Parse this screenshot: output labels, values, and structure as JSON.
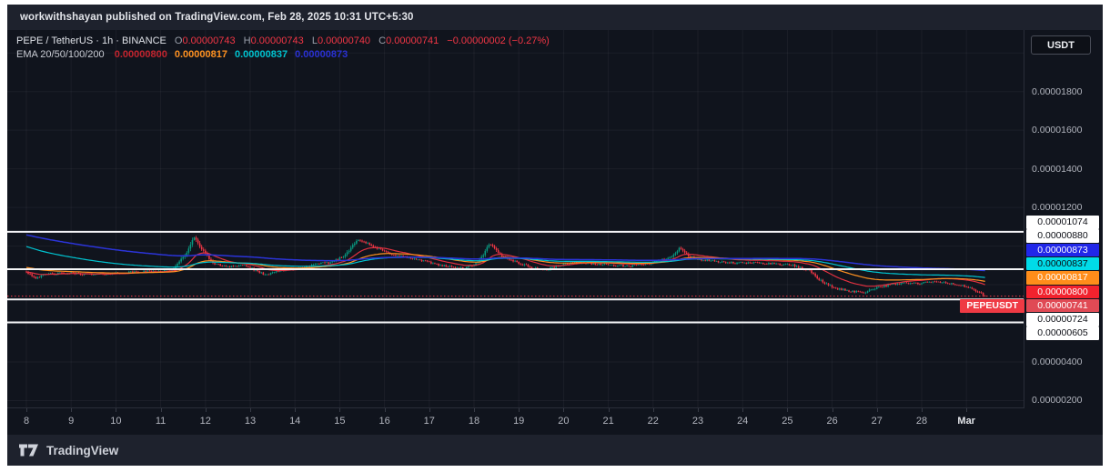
{
  "attribution": {
    "text": "workwithshayan published on TradingView.com, Feb 28, 2025 10:31 UTC+5:30"
  },
  "header": {
    "symbol": "PEPE / TetherUS · 1h · BINANCE",
    "o_label": "O",
    "o": "0.00000743",
    "h_label": "H",
    "h": "0.00000743",
    "l_label": "L",
    "l": "0.00000740",
    "c_label": "C",
    "c": "0.00000741",
    "change": "−0.00000002 (−0.27%)",
    "indicator_label": "EMA 20/50/100/200",
    "indicator_values": [
      {
        "value": "0.00000800",
        "color": "#c2242e"
      },
      {
        "value": "0.00000817",
        "color": "#ff9121"
      },
      {
        "value": "0.00000837",
        "color": "#00c3d0"
      },
      {
        "value": "0.00000873",
        "color": "#2a31d4"
      }
    ]
  },
  "price_axis": {
    "currency_button": "USDT",
    "gray_labels": [
      {
        "text": "0.00001800",
        "price": 1800
      },
      {
        "text": "0.00001600",
        "price": 1600
      },
      {
        "text": "0.00001400",
        "price": 1400
      },
      {
        "text": "0.00001200",
        "price": 1200
      },
      {
        "text": "0.00000400",
        "price": 400
      },
      {
        "text": "0.00000200",
        "price": 200
      }
    ],
    "cluster_labels": [
      {
        "text": "0.00001074",
        "bg": "#ffffff",
        "fg": "#0c0e15"
      },
      {
        "text": "0.00000880",
        "bg": "#ffffff",
        "fg": "#0c0e15"
      },
      {
        "text": "0.00000873",
        "bg": "#2127e9",
        "fg": "#ffffff"
      },
      {
        "text": "0.00000837",
        "bg": "#00dbe8",
        "fg": "#0c0e15"
      },
      {
        "text": "0.00000817",
        "bg": "#ff8d1a",
        "fg": "#ffffff"
      },
      {
        "text": "0.00000800",
        "bg": "#f2222e",
        "fg": "#ffffff"
      },
      {
        "text": "0.00000741",
        "bg": "#e04a55",
        "fg": "#ffffff"
      },
      {
        "text": "0.00000724",
        "bg": "#ffffff",
        "fg": "#0c0e15"
      },
      {
        "text": "0.00000605",
        "bg": "#ffffff",
        "fg": "#0c0e15"
      }
    ]
  },
  "price_tag": {
    "text": "PEPEUSDT",
    "bg": "#ef3a44"
  },
  "time_axis": {
    "labels": [
      "8",
      "9",
      "10",
      "11",
      "12",
      "13",
      "14",
      "15",
      "16",
      "17",
      "18",
      "19",
      "20",
      "21",
      "22",
      "23",
      "24",
      "25",
      "26",
      "27",
      "28",
      "Mar"
    ]
  },
  "footer": {
    "brand": "TradingView"
  },
  "chart_data": {
    "type": "candlestick",
    "title": "PEPE / TetherUS · 1h · BINANCE",
    "interval": "1h",
    "price_scale_note": "prices in units of 1e-8 USDT",
    "x_unit": "day of Feb 2025 (29 = Mar 1)",
    "x_range": [
      7.75,
      30.3
    ],
    "ylim_units": [
      165,
      2119
    ],
    "grid_step_units": 200,
    "horizontal_white_lines": [
      1074,
      880,
      724,
      605
    ],
    "last_price": 741,
    "last_candle": {
      "open": 743,
      "high": 743,
      "low": 740,
      "close": 741
    },
    "down_color": "#f23645",
    "up_color": "#089981",
    "last_price_line_color": "#f23645",
    "close_path": [
      [
        8.0,
        868
      ],
      [
        8.2,
        836
      ],
      [
        8.5,
        856
      ],
      [
        9.0,
        860
      ],
      [
        9.5,
        851
      ],
      [
        10.0,
        860
      ],
      [
        10.5,
        866
      ],
      [
        11.0,
        871
      ],
      [
        11.3,
        882
      ],
      [
        11.6,
        975
      ],
      [
        11.75,
        1045
      ],
      [
        12.0,
        958
      ],
      [
        12.2,
        906
      ],
      [
        12.5,
        895
      ],
      [
        12.9,
        901
      ],
      [
        13.2,
        862
      ],
      [
        13.4,
        851
      ],
      [
        13.7,
        876
      ],
      [
        14.1,
        886
      ],
      [
        14.5,
        906
      ],
      [
        14.8,
        916
      ],
      [
        15.1,
        948
      ],
      [
        15.4,
        1038
      ],
      [
        15.7,
        1002
      ],
      [
        16.1,
        962
      ],
      [
        16.6,
        936
      ],
      [
        17.1,
        910
      ],
      [
        17.5,
        890
      ],
      [
        17.8,
        884
      ],
      [
        18.1,
        915
      ],
      [
        18.35,
        1012
      ],
      [
        18.6,
        952
      ],
      [
        19.0,
        912
      ],
      [
        19.3,
        888
      ],
      [
        19.6,
        876
      ],
      [
        19.9,
        900
      ],
      [
        20.3,
        916
      ],
      [
        20.7,
        908
      ],
      [
        21.1,
        901
      ],
      [
        21.5,
        895
      ],
      [
        21.9,
        909
      ],
      [
        22.4,
        944
      ],
      [
        22.6,
        992
      ],
      [
        22.8,
        946
      ],
      [
        23.1,
        927
      ],
      [
        23.5,
        917
      ],
      [
        23.9,
        911
      ],
      [
        24.3,
        914
      ],
      [
        24.7,
        909
      ],
      [
        25.1,
        901
      ],
      [
        25.5,
        872
      ],
      [
        25.8,
        810
      ],
      [
        26.1,
        779
      ],
      [
        26.4,
        767
      ],
      [
        26.7,
        759
      ],
      [
        27.0,
        787
      ],
      [
        27.3,
        799
      ],
      [
        27.6,
        809
      ],
      [
        27.9,
        805
      ],
      [
        28.2,
        814
      ],
      [
        28.5,
        811
      ],
      [
        28.8,
        799
      ],
      [
        29.1,
        783
      ],
      [
        29.3,
        758
      ],
      [
        29.4,
        741
      ]
    ],
    "emas": [
      {
        "period": 20,
        "color": "#e03140",
        "seed": 865,
        "end": 800
      },
      {
        "period": 50,
        "color": "#ff9121",
        "seed": 890,
        "end": 817
      },
      {
        "period": 100,
        "color": "#00c3d0",
        "seed": 1000,
        "end": 837
      },
      {
        "period": 200,
        "color": "#2b34d8",
        "seed": 1060,
        "end": 873
      }
    ]
  }
}
